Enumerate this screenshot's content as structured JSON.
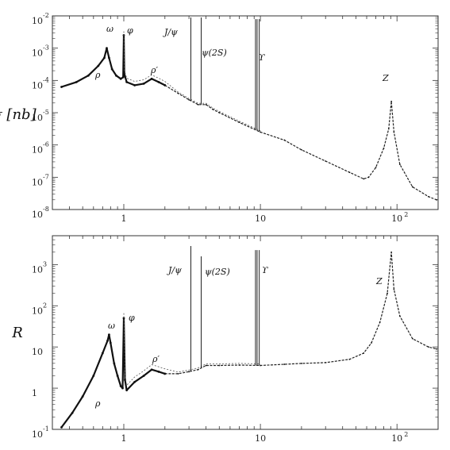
{
  "chart_data": [
    {
      "type": "line",
      "ylabel": "σ [nb]",
      "xscale": "log",
      "yscale": "log",
      "xlim": [
        0.3,
        200
      ],
      "ylim_log10": [
        -8,
        -2
      ],
      "x_ticks": [
        {
          "value": 1,
          "label": "1"
        },
        {
          "value": 10,
          "label": "10"
        },
        {
          "value": 100,
          "label": "10",
          "sup": "2"
        }
      ],
      "y_ticks": [
        {
          "value": -2,
          "label": "10",
          "sup": "-2"
        },
        {
          "value": -3,
          "label": "10",
          "sup": "-3"
        },
        {
          "value": -4,
          "label": "10",
          "sup": "-4"
        },
        {
          "value": -5,
          "label": "10",
          "sup": "-5"
        },
        {
          "value": -6,
          "label": "10",
          "sup": "-6"
        },
        {
          "value": -7,
          "label": "10",
          "sup": "-7"
        },
        {
          "value": -8,
          "label": "10",
          "sup": "-8"
        }
      ],
      "series": [
        {
          "points": [
            [
              0.35,
              -4.2
            ],
            [
              0.45,
              -4.05
            ],
            [
              0.55,
              -3.85
            ],
            [
              0.65,
              -3.55
            ],
            [
              0.72,
              -3.3
            ],
            [
              0.75,
              -3.0
            ],
            [
              0.78,
              -3.3
            ],
            [
              0.82,
              -3.65
            ],
            [
              0.88,
              -3.85
            ],
            [
              0.95,
              -3.95
            ],
            [
              0.99,
              -3.9
            ],
            [
              1.0,
              -2.6
            ],
            [
              1.01,
              -3.8
            ],
            [
              1.05,
              -4.05
            ],
            [
              1.2,
              -4.15
            ],
            [
              1.4,
              -4.1
            ],
            [
              1.6,
              -3.95
            ],
            [
              1.8,
              -4.05
            ],
            [
              2.0,
              -4.15
            ],
            [
              2.5,
              -4.4
            ],
            [
              3.0,
              -4.6
            ],
            [
              3.5,
              -4.75
            ],
            [
              4.0,
              -4.75
            ],
            [
              4.5,
              -4.9
            ],
            [
              5,
              -5.0
            ],
            [
              7,
              -5.3
            ],
            [
              10,
              -5.6
            ],
            [
              15,
              -5.85
            ],
            [
              20,
              -6.15
            ],
            [
              30,
              -6.5
            ],
            [
              45,
              -6.85
            ],
            [
              57,
              -7.05
            ],
            [
              62,
              -7.0
            ],
            [
              70,
              -6.7
            ],
            [
              80,
              -6.1
            ],
            [
              87,
              -5.5
            ],
            [
              91,
              -4.65
            ],
            [
              95,
              -5.6
            ],
            [
              105,
              -6.6
            ],
            [
              130,
              -7.3
            ],
            [
              170,
              -7.6
            ],
            [
              195,
              -7.7
            ]
          ]
        }
      ],
      "resonances": [
        {
          "label": "ρ",
          "x": 0.77
        },
        {
          "label": "ω",
          "x": 0.78
        },
        {
          "label": "φ",
          "x": 1.02
        },
        {
          "label": "ρ′",
          "x": 1.6
        },
        {
          "label": "J/ψ",
          "x": 3.097
        },
        {
          "label": "ψ(2S)",
          "x": 3.686
        },
        {
          "label": "ϒ",
          "x": 9.46
        },
        {
          "label": "Z",
          "x": 91.19
        }
      ]
    },
    {
      "type": "line",
      "ylabel": "R",
      "xscale": "log",
      "yscale": "log",
      "xlim": [
        0.3,
        200
      ],
      "ylim_log10": [
        -1,
        3.7
      ],
      "x_ticks": [
        {
          "value": 1,
          "label": "1"
        },
        {
          "value": 10,
          "label": "10"
        },
        {
          "value": 100,
          "label": "10",
          "sup": "2"
        }
      ],
      "y_ticks": [
        {
          "value": 3,
          "label": "10",
          "sup": "3"
        },
        {
          "value": 2,
          "label": "10",
          "sup": "2"
        },
        {
          "value": 1,
          "label": "10",
          "sup": ""
        },
        {
          "value": 0,
          "label": "1",
          "sup": ""
        },
        {
          "value": -1,
          "label": "10",
          "sup": "-1"
        }
      ],
      "series": [
        {
          "points": [
            [
              0.35,
              -0.95
            ],
            [
              0.42,
              -0.6
            ],
            [
              0.5,
              -0.2
            ],
            [
              0.6,
              0.3
            ],
            [
              0.7,
              0.85
            ],
            [
              0.76,
              1.15
            ],
            [
              0.78,
              1.3
            ],
            [
              0.8,
              1.1
            ],
            [
              0.85,
              0.6
            ],
            [
              0.9,
              0.3
            ],
            [
              0.95,
              0.05
            ],
            [
              0.98,
              0.0
            ],
            [
              1.0,
              1.7
            ],
            [
              1.02,
              0.2
            ],
            [
              1.05,
              -0.05
            ],
            [
              1.2,
              0.15
            ],
            [
              1.4,
              0.3
            ],
            [
              1.6,
              0.45
            ],
            [
              1.8,
              0.4
            ],
            [
              2.0,
              0.35
            ],
            [
              2.5,
              0.35
            ],
            [
              3.0,
              0.4
            ],
            [
              3.5,
              0.45
            ],
            [
              4,
              0.55
            ],
            [
              5,
              0.55
            ],
            [
              7,
              0.56
            ],
            [
              10,
              0.55
            ],
            [
              15,
              0.58
            ],
            [
              20,
              0.6
            ],
            [
              30,
              0.62
            ],
            [
              45,
              0.7
            ],
            [
              57,
              0.85
            ],
            [
              65,
              1.1
            ],
            [
              75,
              1.6
            ],
            [
              85,
              2.3
            ],
            [
              91,
              3.3
            ],
            [
              95,
              2.4
            ],
            [
              105,
              1.75
            ],
            [
              130,
              1.2
            ],
            [
              170,
              1.0
            ],
            [
              195,
              0.95
            ]
          ]
        }
      ],
      "resonances": [
        {
          "label": "ρ",
          "x": 0.77
        },
        {
          "label": "ω",
          "x": 0.78
        },
        {
          "label": "φ",
          "x": 1.02
        },
        {
          "label": "ρ′",
          "x": 1.6
        },
        {
          "label": "J/ψ",
          "x": 3.097
        },
        {
          "label": "ψ(2S)",
          "x": 3.686
        },
        {
          "label": "ϒ",
          "x": 9.46
        },
        {
          "label": "Z",
          "x": 91.19
        }
      ]
    }
  ]
}
